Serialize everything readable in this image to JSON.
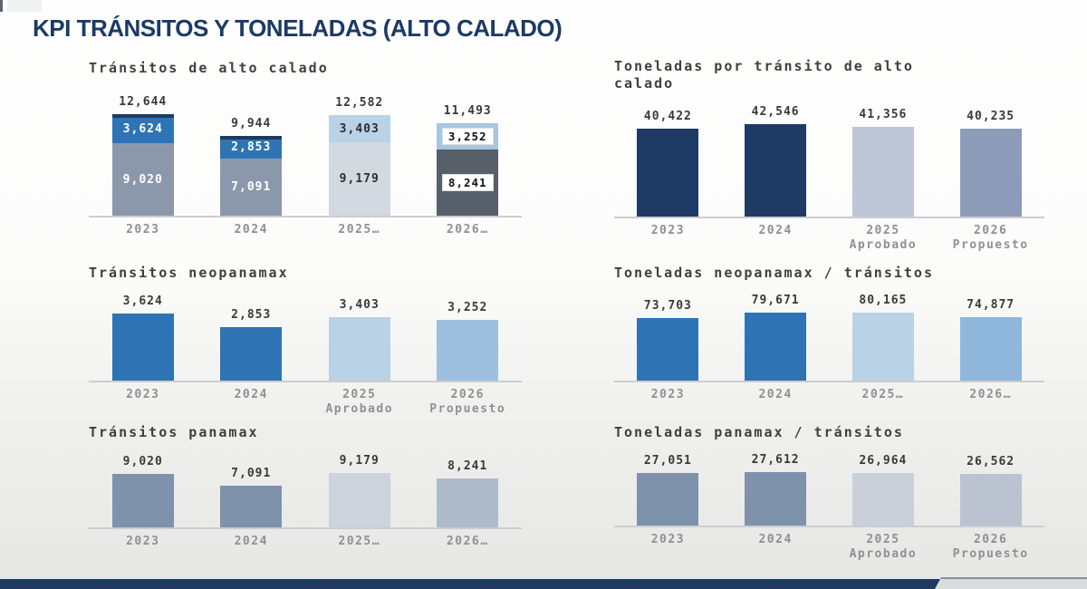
{
  "page": {
    "title": "KPI TRÁNSITOS Y TONELADAS (ALTO CALADO)",
    "colors": {
      "title": "#1b3a66",
      "footer_bar": "#1e3a5f",
      "axis": "#cbcdcf",
      "value_label": "#3a3a3a",
      "category_label": "#8f9092",
      "chart_title": "#3f3f3f"
    }
  },
  "chart_data": [
    {
      "type": "stacked-bar",
      "title": [
        "Tránsitos de alto calado"
      ],
      "xlabel": "",
      "ylabel": "",
      "ylim": [
        0,
        14000
      ],
      "legend": "none",
      "grid": false,
      "categories": [
        [
          "2023"
        ],
        [
          "2024"
        ],
        [
          "2025…"
        ],
        [
          "2026…"
        ]
      ],
      "bars": [
        {
          "total": 12644,
          "total_label": "12,644",
          "cap_color": "#1e3a5f",
          "segments": [
            {
              "name": "panamax",
              "value": 9020,
              "label": "9,020",
              "color": "#8b98ac",
              "text_color": "#ffffff",
              "boxed": false
            },
            {
              "name": "neopanamax",
              "value": 3624,
              "label": "3,624",
              "color": "#2e74b5",
              "text_color": "#ffffff",
              "boxed": false
            }
          ]
        },
        {
          "total": 9944,
          "total_label": "9,944",
          "cap_color": "#1e3a5f",
          "segments": [
            {
              "name": "panamax",
              "value": 7091,
              "label": "7,091",
              "color": "#8b98ac",
              "text_color": "#ffffff",
              "boxed": false
            },
            {
              "name": "neopanamax",
              "value": 2853,
              "label": "2,853",
              "color": "#2e74b5",
              "text_color": "#ffffff",
              "boxed": false
            }
          ]
        },
        {
          "total": 12582,
          "total_label": "12,582",
          "cap_color": null,
          "segments": [
            {
              "name": "panamax",
              "value": 9179,
              "label": "9,179",
              "color": "#d3d9e1",
              "text_color": "#2e2e2e",
              "boxed": false
            },
            {
              "name": "neopanamax",
              "value": 3403,
              "label": "3,403",
              "color": "#b9d2e6",
              "text_color": "#2e2e2e",
              "boxed": false
            }
          ]
        },
        {
          "total": 11493,
          "total_label": "11,493",
          "cap_color": null,
          "segments": [
            {
              "name": "panamax",
              "value": 8241,
              "label": "8,241",
              "color": "#565f6a",
              "text_color": "#111111",
              "boxed": true
            },
            {
              "name": "neopanamax",
              "value": 3252,
              "label": "3,252",
              "color": "#a6c6e2",
              "text_color": "#111111",
              "boxed": true
            }
          ]
        }
      ]
    },
    {
      "type": "bar",
      "title": [
        "Toneladas por tránsito de alto",
        "calado"
      ],
      "xlabel": "",
      "ylabel": "",
      "ylim": [
        0,
        45000
      ],
      "legend": "none",
      "grid": false,
      "categories": [
        [
          "2023"
        ],
        [
          "2024"
        ],
        [
          "2025",
          "Aprobado"
        ],
        [
          "2026",
          "Propuesto"
        ]
      ],
      "values": [
        40422,
        42546,
        41356,
        40235
      ],
      "value_labels": [
        "40,422",
        "42,546",
        "41,356",
        "40,235"
      ],
      "colors": [
        "#1f3a64",
        "#1f3a64",
        "#bdc7d8",
        "#8d9cb8"
      ]
    },
    {
      "type": "bar",
      "title": [
        "Tránsitos neopanamax"
      ],
      "xlabel": "",
      "ylabel": "",
      "ylim": [
        0,
        3900
      ],
      "legend": "none",
      "grid": false,
      "categories": [
        [
          "2023"
        ],
        [
          "2024"
        ],
        [
          "2025",
          "Aprobado"
        ],
        [
          "2026",
          "Propuesto"
        ]
      ],
      "values": [
        3624,
        2853,
        3403,
        3252
      ],
      "value_labels": [
        "3,624",
        "2,853",
        "3,403",
        "3,252"
      ],
      "colors": [
        "#2e74b5",
        "#2e74b5",
        "#b9d2e6",
        "#9cc0de"
      ]
    },
    {
      "type": "bar",
      "title": [
        "Toneladas neopanamax / tránsitos"
      ],
      "xlabel": "",
      "ylabel": "",
      "ylim": [
        0,
        85000
      ],
      "legend": "none",
      "grid": false,
      "categories": [
        [
          "2023"
        ],
        [
          "2024"
        ],
        [
          "2025…"
        ],
        [
          "2026…"
        ]
      ],
      "values": [
        73703,
        79671,
        80165,
        74877
      ],
      "value_labels": [
        "73,703",
        "79,671",
        "80,165",
        "74,877"
      ],
      "colors": [
        "#2e74b5",
        "#2e74b5",
        "#b9d2e6",
        "#8fb7dc"
      ]
    },
    {
      "type": "bar",
      "title": [
        "Tránsitos panamax"
      ],
      "xlabel": "",
      "ylabel": "",
      "ylim": [
        0,
        9800
      ],
      "legend": "none",
      "grid": false,
      "categories": [
        [
          "2023"
        ],
        [
          "2024"
        ],
        [
          "2025…"
        ],
        [
          "2026…"
        ]
      ],
      "values": [
        9020,
        7091,
        9179,
        8241
      ],
      "value_labels": [
        "9,020",
        "7,091",
        "9,179",
        "8,241"
      ],
      "colors": [
        "#7e92ac",
        "#7e92ac",
        "#ccd3dc",
        "#aebbca"
      ]
    },
    {
      "type": "bar",
      "title": [
        "Toneladas panamax / tránsitos"
      ],
      "xlabel": "",
      "ylabel": "",
      "ylim": [
        0,
        29000
      ],
      "legend": "none",
      "grid": false,
      "categories": [
        [
          "2023"
        ],
        [
          "2024"
        ],
        [
          "2025",
          "Aprobado"
        ],
        [
          "2026",
          "Propuesto"
        ]
      ],
      "values": [
        27051,
        27612,
        26964,
        26562
      ],
      "value_labels": [
        "27,051",
        "27,612",
        "26,964",
        "26,562"
      ],
      "colors": [
        "#7e92ac",
        "#7e92ac",
        "#c9d0da",
        "#bac3cf"
      ]
    }
  ]
}
